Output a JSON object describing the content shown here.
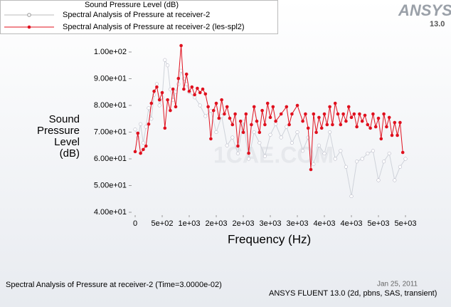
{
  "chart_data": {
    "type": "line",
    "legend_title": "Sound Pressure Level (dB)",
    "ylabel_lines": [
      "Sound",
      "Pressure",
      "Level",
      "(dB)"
    ],
    "xlabel": "Frequency (Hz)",
    "logo": "ANSYS",
    "version": "13.0",
    "footer_left": "Spectral Analysis of Pressure at receiver-2  (Time=3.0000e-02)",
    "footer_right": "ANSYS FLUENT 13.0 (2d, pbns, SAS, transient)",
    "footer_date": "Jan 25, 2011",
    "watermark": "1CAE.COM",
    "ylim": [
      40,
      100
    ],
    "yticks": [
      {
        "value": 40,
        "label": "4.00e+01"
      },
      {
        "value": 50,
        "label": "5.00e+01"
      },
      {
        "value": 60,
        "label": "6.00e+01"
      },
      {
        "value": 70,
        "label": "7.00e+01"
      },
      {
        "value": 80,
        "label": "8.00e+01"
      },
      {
        "value": 90,
        "label": "9.00e+01"
      },
      {
        "value": 100,
        "label": "1.00e+02"
      }
    ],
    "xlim": [
      0,
      5000
    ],
    "xticks": [
      0,
      {
        "value": 500,
        "label": "5e+02"
      },
      {
        "value": 1000,
        "label": "1e+03"
      },
      {
        "value": 1500,
        "label": "2e+03"
      },
      {
        "value": 2000,
        "label": "2e+03"
      },
      {
        "value": 2500,
        "label": "3e+03"
      },
      {
        "value": 3000,
        "label": "3e+03"
      },
      {
        "value": 3500,
        "label": "4e+03"
      },
      {
        "value": 4000,
        "label": "4e+03"
      },
      {
        "value": 4500,
        "label": "5e+03"
      },
      {
        "value": 5000,
        "label": "5e+03"
      }
    ],
    "series": [
      {
        "name": "Spectral Analysis of Pressure at receiver-2",
        "color": "#ffffff",
        "x": [
          0,
          50,
          100,
          150,
          200,
          250,
          300,
          350,
          400,
          450,
          500,
          550,
          600,
          650,
          700,
          750,
          800,
          850,
          900,
          950,
          1000,
          1100,
          1200,
          1300,
          1400,
          1500,
          1600,
          1700,
          1800,
          1900,
          2000,
          2100,
          2200,
          2300,
          2400,
          2500,
          2600,
          2700,
          2800,
          2900,
          3000,
          3100,
          3200,
          3300,
          3400,
          3500,
          3600,
          3700,
          3800,
          3900,
          4000,
          4100,
          4200,
          4300,
          4400,
          4500,
          4600,
          4700,
          4800,
          4900,
          5000
        ],
        "values": [
          71,
          68,
          73,
          66,
          72,
          79,
          75,
          84,
          88,
          80,
          83,
          97,
          95,
          86,
          82,
          85,
          88,
          93,
          90,
          88,
          85,
          83,
          80,
          76,
          78,
          70,
          76,
          65,
          68,
          62,
          74,
          60,
          70,
          66,
          61,
          69,
          73,
          68,
          72,
          66,
          70,
          63,
          68,
          58,
          65,
          62,
          70,
          60,
          63,
          57,
          46,
          59,
          60,
          62,
          63,
          52,
          59,
          62,
          52,
          57,
          60
        ]
      },
      {
        "name": "Spectral Analysis of Pressure at receiver-2 (les-spl2)",
        "color": "#e0101e",
        "x": [
          0,
          50,
          100,
          150,
          200,
          250,
          300,
          350,
          400,
          450,
          500,
          550,
          600,
          650,
          700,
          750,
          800,
          850,
          900,
          950,
          1000,
          1050,
          1100,
          1150,
          1200,
          1250,
          1300,
          1350,
          1400,
          1450,
          1500,
          1550,
          1600,
          1650,
          1700,
          1750,
          1800,
          1850,
          1900,
          1950,
          2000,
          2050,
          2100,
          2150,
          2200,
          2250,
          2300,
          2350,
          2400,
          2450,
          2500,
          2550,
          2600,
          2700,
          2800,
          2850,
          2900,
          3000,
          3100,
          3150,
          3200,
          3250,
          3300,
          3350,
          3400,
          3450,
          3500,
          3550,
          3600,
          3650,
          3700,
          3750,
          3800,
          3850,
          3900,
          3950,
          4000,
          4050,
          4100,
          4150,
          4200,
          4250,
          4300,
          4350,
          4400,
          4450,
          4500,
          4550,
          4600,
          4650,
          4700,
          4750,
          4800,
          4850,
          4900,
          4950
        ],
        "values": [
          62.7,
          69.6,
          62.1,
          63.5,
          64.8,
          73,
          80.8,
          85.3,
          86.9,
          82.1,
          84.8,
          71.5,
          82.1,
          78.1,
          86.1,
          79.5,
          90.1,
          102.4,
          86.1,
          91.7,
          85.3,
          86.9,
          84,
          86.4,
          84.8,
          86.1,
          84.3,
          79.5,
          67.5,
          78.1,
          80.8,
          75.2,
          82.1,
          76.8,
          79.5,
          75.2,
          72.8,
          76.8,
          64.8,
          74.1,
          69.9,
          76.8,
          62.1,
          72.8,
          79.5,
          74.1,
          69.9,
          78.1,
          72.8,
          80.8,
          75.5,
          79.5,
          74.1,
          76.8,
          79.5,
          72.8,
          76.8,
          80,
          74.1,
          76.8,
          71.5,
          56,
          76.8,
          69.9,
          75.5,
          71.5,
          76.8,
          72.8,
          79.5,
          72.8,
          80.8,
          76.8,
          72.8,
          76.8,
          74.1,
          79.5,
          75.5,
          76.8,
          72,
          76.8,
          74.1,
          76.3,
          72.8,
          71.5,
          76.8,
          72,
          75.2,
          67.5,
          76.8,
          72,
          75.5,
          68.8,
          73.6,
          68.8,
          73.6,
          62.4
        ]
      }
    ]
  }
}
